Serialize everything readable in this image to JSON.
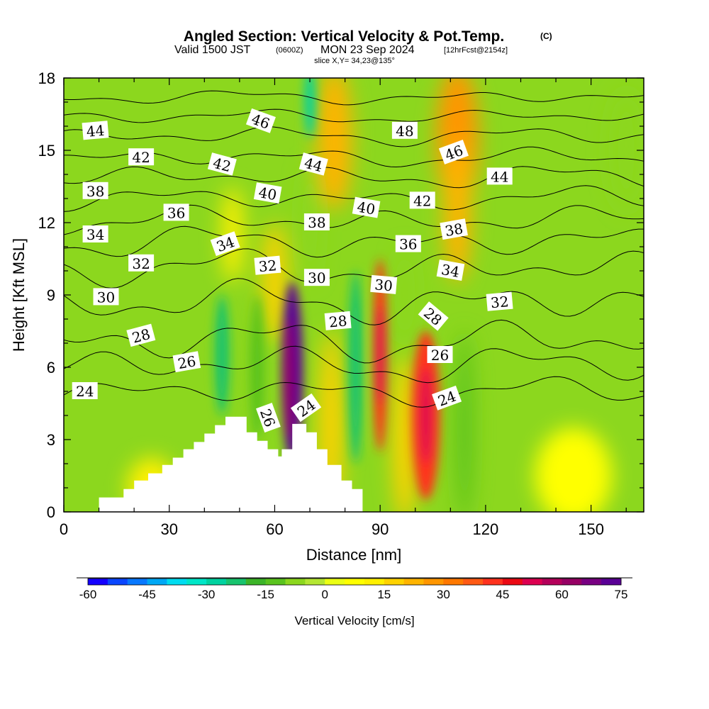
{
  "header": {
    "title": "Angled Section: Vertical Velocity & Pot.Temp.",
    "title_mark": "(C)",
    "valid_prefix": "Valid 1500 JST",
    "valid_utc": "(0600Z)",
    "valid_date": "MON 23 Sep 2024",
    "forecast": "[12hrFcst@2154z]",
    "slice": "slice X,Y= 34,23@135°"
  },
  "chart_data": {
    "type": "heatmap",
    "title": "Angled Section: Vertical Velocity & Pot.Temp.",
    "xlabel": "Distance [nm]",
    "ylabel": "Height [Kft MSL]",
    "xlim": [
      0,
      165
    ],
    "ylim": [
      0,
      18
    ],
    "xticks": [
      0,
      30,
      60,
      90,
      120,
      150
    ],
    "yticks": [
      0,
      3,
      6,
      9,
      12,
      15,
      18
    ],
    "colorbar": {
      "label": "Vertical Velocity [cm/s]",
      "ticks": [
        -60,
        -45,
        -30,
        -15,
        0,
        15,
        30,
        45,
        60,
        75
      ],
      "colors": [
        "#1400ff",
        "#0a46ff",
        "#0878ff",
        "#00a8f5",
        "#00dcf0",
        "#00e6c8",
        "#00d2a0",
        "#18c36e",
        "#3cb428",
        "#5ac31e",
        "#8cd71e",
        "#b4e632",
        "#ebff14",
        "#ffff00",
        "#fff000",
        "#ffd200",
        "#ffb400",
        "#ff9600",
        "#ff7800",
        "#ff5a14",
        "#ff321e",
        "#eb0a14",
        "#dc0050",
        "#b4005a",
        "#960064",
        "#780082",
        "#5a0096"
      ]
    },
    "terrain": [
      [
        10,
        0.35
      ],
      [
        10,
        0.6
      ],
      [
        17,
        0.6
      ],
      [
        17,
        0.95
      ],
      [
        20,
        0.95
      ],
      [
        20,
        1.3
      ],
      [
        24,
        1.3
      ],
      [
        24,
        1.6
      ],
      [
        28,
        1.6
      ],
      [
        28,
        1.95
      ],
      [
        31,
        1.95
      ],
      [
        31,
        2.25
      ],
      [
        34,
        2.25
      ],
      [
        34,
        2.6
      ],
      [
        37,
        2.6
      ],
      [
        37,
        2.9
      ],
      [
        40,
        2.9
      ],
      [
        40,
        3.25
      ],
      [
        43,
        3.25
      ],
      [
        43,
        3.6
      ],
      [
        46,
        3.6
      ],
      [
        46,
        3.95
      ],
      [
        52,
        3.95
      ],
      [
        52,
        3.3
      ],
      [
        55,
        3.3
      ],
      [
        55,
        2.95
      ],
      [
        58,
        2.95
      ],
      [
        58,
        2.6
      ],
      [
        61,
        2.6
      ],
      [
        61,
        2.3
      ],
      [
        62,
        2.3
      ],
      [
        62,
        2.6
      ],
      [
        65,
        2.6
      ],
      [
        65,
        3.65
      ],
      [
        69,
        3.65
      ],
      [
        69,
        3.3
      ],
      [
        72,
        3.3
      ],
      [
        72,
        2.6
      ],
      [
        75,
        2.6
      ],
      [
        75,
        1.95
      ],
      [
        79,
        1.95
      ],
      [
        79,
        1.3
      ],
      [
        82,
        1.3
      ],
      [
        82,
        0.95
      ],
      [
        85,
        0.95
      ],
      [
        85,
        0.35
      ]
    ],
    "velocity_cells": [
      {
        "x": 65,
        "y": 5.8,
        "w": 6,
        "h": 7.5,
        "v": 72
      },
      {
        "x": 64,
        "y": 5.5,
        "w": 2.5,
        "h": 5,
        "v": 60
      },
      {
        "x": 90,
        "y": 6.5,
        "w": 4,
        "h": 8,
        "v": 40
      },
      {
        "x": 90,
        "y": 6.5,
        "w": 2,
        "h": 4,
        "v": 50
      },
      {
        "x": 103,
        "y": 4.0,
        "w": 8,
        "h": 7,
        "v": 40
      },
      {
        "x": 103,
        "y": 4.0,
        "w": 3,
        "h": 4,
        "v": 50
      },
      {
        "x": 76,
        "y": 3.5,
        "w": 7,
        "h": 8,
        "v": 15
      },
      {
        "x": 97,
        "y": 3.0,
        "w": 7,
        "h": 7,
        "v": 15
      },
      {
        "x": 112,
        "y": 15.5,
        "w": 12,
        "h": 6,
        "v": 25
      },
      {
        "x": 112,
        "y": 12.5,
        "w": 8,
        "h": 6,
        "v": 20
      },
      {
        "x": 77,
        "y": 15.5,
        "w": 10,
        "h": 6,
        "v": 22
      },
      {
        "x": 60,
        "y": 9.5,
        "w": 7,
        "h": 5,
        "v": 15
      },
      {
        "x": 48,
        "y": 11.5,
        "w": 6,
        "h": 4,
        "v": 12
      },
      {
        "x": 83,
        "y": 6.0,
        "w": 4,
        "h": 8,
        "v": -25
      },
      {
        "x": 45,
        "y": 6.5,
        "w": 4,
        "h": 5,
        "v": -25
      },
      {
        "x": 70,
        "y": 17.0,
        "w": 3,
        "h": 3,
        "v": -30
      },
      {
        "x": 55,
        "y": 6.0,
        "w": 4,
        "h": 6,
        "v": -15
      },
      {
        "x": 114,
        "y": 3.5,
        "w": 5,
        "h": 8,
        "v": -12
      },
      {
        "x": 97,
        "y": 9.0,
        "w": 6,
        "h": 4,
        "v": -10
      },
      {
        "x": 70,
        "y": 12.0,
        "w": 5,
        "h": 5,
        "v": -10
      },
      {
        "x": 145,
        "y": 1.5,
        "w": 22,
        "h": 4,
        "v": 8
      },
      {
        "x": 160,
        "y": 15.0,
        "w": 10,
        "h": 5,
        "v": -8
      },
      {
        "x": 25,
        "y": 1.0,
        "w": 14,
        "h": 2.5,
        "v": 12
      }
    ],
    "theta_contours": [
      {
        "value": 24,
        "base_y": 5.0,
        "amp": 0.6
      },
      {
        "value": 26,
        "base_y": 6.1,
        "amp": 0.8
      },
      {
        "value": 28,
        "base_y": 7.1,
        "amp": 0.9
      },
      {
        "value": 30,
        "base_y": 8.7,
        "amp": 0.9
      },
      {
        "value": 32,
        "base_y": 10.1,
        "amp": 0.8
      },
      {
        "value": 34,
        "base_y": 11.2,
        "amp": 0.7
      },
      {
        "value": 36,
        "base_y": 12.1,
        "amp": 0.6
      },
      {
        "value": 38,
        "base_y": 13.0,
        "amp": 0.5
      },
      {
        "value": 40,
        "base_y": 13.9,
        "amp": 0.5
      },
      {
        "value": 42,
        "base_y": 14.7,
        "amp": 0.4
      },
      {
        "value": 44,
        "base_y": 15.6,
        "amp": 0.4
      },
      {
        "value": 46,
        "base_y": 16.4,
        "amp": 0.3
      },
      {
        "value": 48,
        "base_y": 17.2,
        "amp": 0.3
      }
    ],
    "contour_labels": [
      {
        "text": "44",
        "x": 9,
        "y": 15.8,
        "rot": -5
      },
      {
        "text": "42",
        "x": 22,
        "y": 14.7,
        "rot": 0
      },
      {
        "text": "38",
        "x": 9,
        "y": 13.3,
        "rot": 0
      },
      {
        "text": "36",
        "x": 32,
        "y": 12.4,
        "rot": 0
      },
      {
        "text": "34",
        "x": 9,
        "y": 11.5,
        "rot": 0
      },
      {
        "text": "32",
        "x": 22,
        "y": 10.3,
        "rot": 0
      },
      {
        "text": "30",
        "x": 12,
        "y": 8.9,
        "rot": 0
      },
      {
        "text": "28",
        "x": 22,
        "y": 7.3,
        "rot": -15
      },
      {
        "text": "26",
        "x": 35,
        "y": 6.2,
        "rot": -10
      },
      {
        "text": "24",
        "x": 6,
        "y": 5.0,
        "rot": 0
      },
      {
        "text": "46",
        "x": 56,
        "y": 16.2,
        "rot": 20
      },
      {
        "text": "42",
        "x": 45,
        "y": 14.4,
        "rot": 15
      },
      {
        "text": "40",
        "x": 58,
        "y": 13.2,
        "rot": 10
      },
      {
        "text": "34",
        "x": 46,
        "y": 11.1,
        "rot": -20
      },
      {
        "text": "32",
        "x": 58,
        "y": 10.2,
        "rot": -5
      },
      {
        "text": "26",
        "x": 58,
        "y": 3.9,
        "rot": 70
      },
      {
        "text": "24",
        "x": 69,
        "y": 4.3,
        "rot": -35
      },
      {
        "text": "44",
        "x": 71,
        "y": 14.4,
        "rot": 15
      },
      {
        "text": "38",
        "x": 72,
        "y": 12.0,
        "rot": 0
      },
      {
        "text": "30",
        "x": 72,
        "y": 9.7,
        "rot": 0
      },
      {
        "text": "28",
        "x": 78,
        "y": 7.9,
        "rot": -5
      },
      {
        "text": "40",
        "x": 86,
        "y": 12.6,
        "rot": 10
      },
      {
        "text": "30",
        "x": 91,
        "y": 9.4,
        "rot": 5
      },
      {
        "text": "36",
        "x": 98,
        "y": 11.1,
        "rot": 0
      },
      {
        "text": "48",
        "x": 97,
        "y": 15.8,
        "rot": 0
      },
      {
        "text": "42",
        "x": 102,
        "y": 12.9,
        "rot": 0
      },
      {
        "text": "28",
        "x": 105,
        "y": 8.1,
        "rot": 40
      },
      {
        "text": "26",
        "x": 107,
        "y": 6.5,
        "rot": 0
      },
      {
        "text": "24",
        "x": 109,
        "y": 4.7,
        "rot": -20
      },
      {
        "text": "46",
        "x": 111,
        "y": 14.9,
        "rot": -20
      },
      {
        "text": "38",
        "x": 111,
        "y": 11.7,
        "rot": -10
      },
      {
        "text": "34",
        "x": 110,
        "y": 10.0,
        "rot": 10
      },
      {
        "text": "44",
        "x": 124,
        "y": 13.9,
        "rot": 0
      },
      {
        "text": "32",
        "x": 124,
        "y": 8.7,
        "rot": -5
      }
    ]
  }
}
